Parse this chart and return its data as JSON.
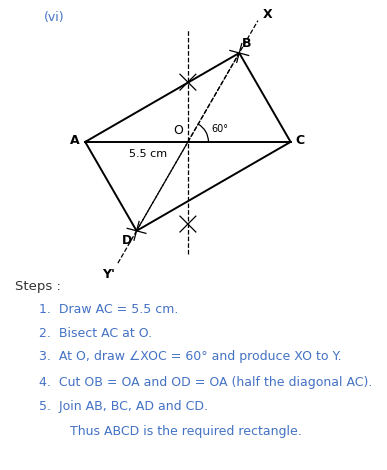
{
  "title_text": "(vi)",
  "title_color": "#4472c4",
  "bg_color": "#ffffff",
  "figsize": [
    3.87,
    4.7
  ],
  "dpi": 100,
  "label_55cm": "5.5 cm",
  "steps_title": "Steps :",
  "steps_title_color": "#333333",
  "steps_color": "#4472c4",
  "steps": [
    "Draw AC = 5.5 cm.",
    "Bisect AC at O.",
    "At O, draw ∠XOC = 60° and produce XO to Y.",
    "Cut OB = OA and OD = OA (half the diagonal AC).",
    "Join AB, BC, AD and CD."
  ],
  "last_line": "Thus ABCD is the required rectangle.",
  "last_line_color": "#4472c4"
}
